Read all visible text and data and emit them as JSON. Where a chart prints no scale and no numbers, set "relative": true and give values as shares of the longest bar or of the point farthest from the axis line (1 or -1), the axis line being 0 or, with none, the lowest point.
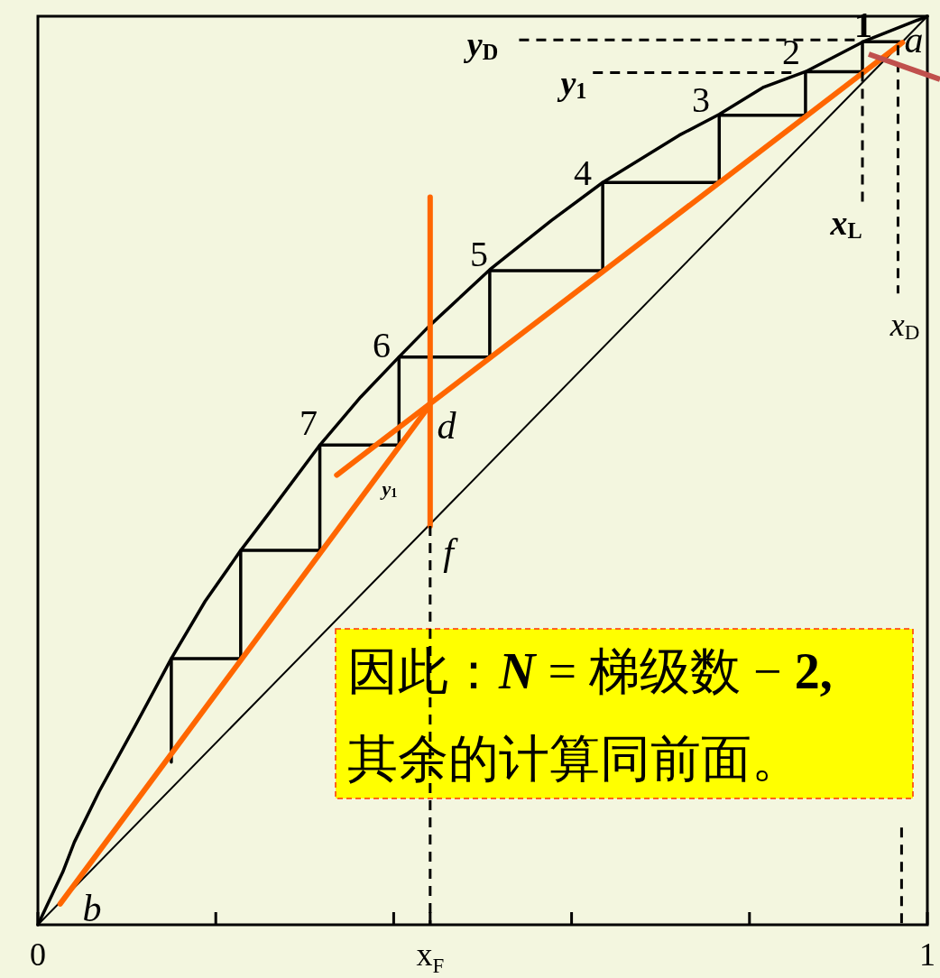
{
  "chart_data": {
    "type": "line",
    "relative": true,
    "xlim": [
      0,
      1
    ],
    "xticks": [
      0,
      {
        "value": 0.2,
        "label": null
      },
      {
        "value": 0.4,
        "label": null
      },
      {
        "value": 0.441,
        "label": "x$_{F}$"
      },
      {
        "value": 0.6,
        "label": null
      },
      {
        "value": 0.8,
        "label": null
      },
      1
    ],
    "series": [
      {
        "color": "#000000",
        "x": [
          0,
          0.028,
          0.041,
          0.069,
          0.11,
          0.15,
          0.188,
          0.228,
          0.259,
          0.317,
          0.363,
          0.406,
          0.441,
          0.508,
          0.577,
          0.635,
          0.721,
          0.766,
          0.816,
          0.863,
          0.928,
          1
        ],
        "values": [
          0,
          0.058,
          0.091,
          0.147,
          0.22,
          0.293,
          0.356,
          0.412,
          0.452,
          0.528,
          0.581,
          0.625,
          0.66,
          0.721,
          0.775,
          0.817,
          0.869,
          0.892,
          0.922,
          0.939,
          0.972,
          1
        ]
      },
      {
        "color": "#000000",
        "x": [
          0,
          1
        ],
        "values": [
          0,
          1
        ]
      },
      {
        "color": "#000000",
        "x": [
          0.969,
          0.927,
          0.927,
          0.863,
          0.863,
          0.766,
          0.766,
          0.635,
          0.635,
          0.508,
          0.508,
          0.406,
          0.406,
          0.317,
          0.317,
          0.228,
          0.228,
          0.15,
          0.15
        ],
        "values": [
          0.972,
          0.972,
          0.939,
          0.939,
          0.891,
          0.891,
          0.817,
          0.817,
          0.72,
          0.72,
          0.625,
          0.625,
          0.528,
          0.528,
          0.412,
          0.412,
          0.293,
          0.293,
          0.179
        ]
      },
      {
        "color": "#ff6600",
        "x": [
          0.972,
          0.336
        ],
        "values": [
          0.971,
          0.495
        ]
      },
      {
        "color": "#ff6600",
        "x": [
          0.025,
          0.44
        ],
        "values": [
          0.023,
          0.571
        ]
      },
      {
        "color": "#ff6600",
        "x": [
          0.441,
          0.441
        ],
        "values": [
          0.801,
          0.439
        ]
      },
      {
        "color": "#000000",
        "line_style": "dashed",
        "x": [
          0.541,
          0.924
        ],
        "values": [
          0.974,
          0.974
        ]
      },
      {
        "color": "#000000",
        "line_style": "dashed",
        "x": [
          0.624,
          0.849
        ],
        "values": [
          0.938,
          0.938
        ]
      },
      {
        "color": "#000000",
        "line_style": "dashed",
        "x": [
          0.927,
          0.927
        ],
        "values": [
          0.939,
          0.791
        ]
      },
      {
        "color": "#000000",
        "line_style": "dashed",
        "x": [
          0.967,
          0.967
        ],
        "values": [
          0.968,
          0.695
        ]
      },
      {
        "color": "#000000",
        "line_style": "dashed",
        "x": [
          0.441,
          0.441
        ],
        "values": [
          0.439,
          0
        ]
      },
      {
        "color": "#000000",
        "line_style": "dashed",
        "x": [
          0.971,
          0.971
        ],
        "values": [
          0.107,
          0
        ]
      }
    ],
    "annotations": [
      "a",
      "b",
      "d",
      "f",
      "1",
      "2",
      "3",
      "4",
      "5",
      "6",
      "7",
      "y$_{D}$",
      "y$_{1}$",
      "x$_{L}$",
      "x$_{D}$",
      "y$_{1}$",
      "因此：*N* = 梯级数 − **2,**",
      "其余的计算同前面。"
    ]
  }
}
